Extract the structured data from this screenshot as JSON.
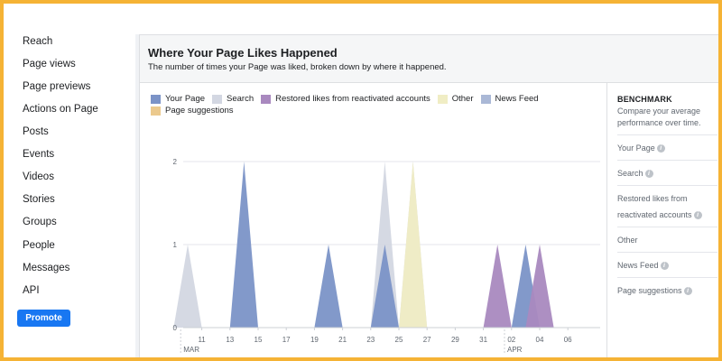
{
  "sidebar": {
    "items": [
      {
        "label": "Reach"
      },
      {
        "label": "Page views"
      },
      {
        "label": "Page previews"
      },
      {
        "label": "Actions on Page"
      },
      {
        "label": "Posts"
      },
      {
        "label": "Events"
      },
      {
        "label": "Videos"
      },
      {
        "label": "Stories"
      },
      {
        "label": "Groups"
      },
      {
        "label": "People"
      },
      {
        "label": "Messages"
      },
      {
        "label": "API"
      }
    ],
    "promote_label": "Promote"
  },
  "card": {
    "title": "Where Your Page Likes Happened",
    "subtitle": "The number of times your Page was liked, broken down by where it happened."
  },
  "benchmark": {
    "title": "BENCHMARK",
    "description": "Compare your average performance over time.",
    "items": [
      {
        "label": "Your Page"
      },
      {
        "label": "Search"
      },
      {
        "label": "Restored likes from reactivated accounts"
      },
      {
        "label": "Other"
      },
      {
        "label": "News Feed"
      },
      {
        "label": "Page suggestions"
      }
    ]
  },
  "chart_data": {
    "type": "area",
    "ylim": [
      0,
      2
    ],
    "y_ticks": [
      "0",
      "1",
      "2"
    ],
    "x_ticks": [
      "11",
      "13",
      "15",
      "17",
      "19",
      "21",
      "23",
      "25",
      "27",
      "29",
      "31",
      "02",
      "04",
      "06"
    ],
    "month_labels": [
      "MAR",
      "APR"
    ],
    "legend": [
      {
        "name": "Your Page",
        "color": "#7b93c7"
      },
      {
        "name": "Search",
        "color": "#d3d7e2"
      },
      {
        "name": "Restored likes from reactivated accounts",
        "color": "#a989bf"
      },
      {
        "name": "Other",
        "color": "#f0edc4"
      },
      {
        "name": "News Feed",
        "color": "#aab8d6"
      },
      {
        "name": "Page suggestions",
        "color": "#ebc98d"
      }
    ],
    "series": [
      {
        "name": "Search",
        "color": "#d3d7e2",
        "points": [
          {
            "day": 10,
            "value": 1
          },
          {
            "day": 24,
            "value": 2
          },
          {
            "day": 26,
            "value": 2
          }
        ]
      },
      {
        "name": "Other",
        "color": "#f0edc4",
        "points": [
          {
            "day": 26,
            "value": 2
          }
        ]
      },
      {
        "name": "Your Page",
        "color": "#7b93c7",
        "points": [
          {
            "day": 14,
            "value": 2
          },
          {
            "day": 20,
            "value": 1
          },
          {
            "day": 24,
            "value": 1
          },
          {
            "day": 34,
            "value": 1
          }
        ]
      },
      {
        "name": "Restored likes from reactivated accounts",
        "color": "#a989bf",
        "points": [
          {
            "day": 32,
            "value": 1
          },
          {
            "day": 35,
            "value": 1
          }
        ]
      }
    ]
  }
}
